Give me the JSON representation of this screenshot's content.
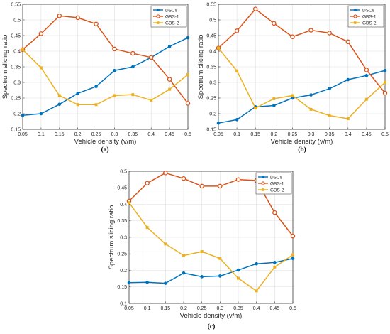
{
  "chart_data": [
    {
      "type": "line",
      "caption": "(a)",
      "xlabel": "Vehicle density (v/m)",
      "ylabel": "Spectrum slicing ratio",
      "x": [
        0.05,
        0.1,
        0.15,
        0.2,
        0.25,
        0.3,
        0.35,
        0.4,
        0.45,
        0.5
      ],
      "xticks": [
        "0.05",
        "0.1",
        "0.15",
        "0.2",
        "0.25",
        "0.3",
        "0.35",
        "0.4",
        "0.45",
        "0.5"
      ],
      "xlim": [
        0.05,
        0.5
      ],
      "ylim": [
        0.15,
        0.55
      ],
      "yticks": [
        "0.15",
        "0.2",
        "0.25",
        "0.3",
        "0.35",
        "0.4",
        "0.45",
        "0.5",
        "0.55"
      ],
      "grid": true,
      "legend_position": "top-right",
      "series": [
        {
          "name": "DSCs",
          "color": "#0072BD",
          "values": [
            0.195,
            0.2,
            0.23,
            0.265,
            0.287,
            0.338,
            0.35,
            0.38,
            0.415,
            0.443
          ]
        },
        {
          "name": "GBS-1",
          "color": "#D95319",
          "values": [
            0.405,
            0.456,
            0.513,
            0.507,
            0.487,
            0.407,
            0.393,
            0.38,
            0.31,
            0.233
          ]
        },
        {
          "name": "GBS-2",
          "color": "#EDB120",
          "values": [
            0.405,
            0.347,
            0.258,
            0.229,
            0.229,
            0.258,
            0.261,
            0.243,
            0.278,
            0.325
          ]
        }
      ]
    },
    {
      "type": "line",
      "caption": "(b)",
      "xlabel": "Vehicle density (v/m)",
      "ylabel": "Spectrum slicing ratio",
      "x": [
        0.05,
        0.1,
        0.15,
        0.2,
        0.25,
        0.3,
        0.35,
        0.4,
        0.45,
        0.5
      ],
      "xticks": [
        "0.05",
        "0.1",
        "0.15",
        "0.2",
        "0.25",
        "0.3",
        "0.35",
        "0.4",
        "0.45",
        "0.5"
      ],
      "xlim": [
        0.05,
        0.5
      ],
      "ylim": [
        0.15,
        0.55
      ],
      "yticks": [
        "0.15",
        "0.2",
        "0.25",
        "0.3",
        "0.35",
        "0.4",
        "0.45",
        "0.5",
        "0.55"
      ],
      "grid": true,
      "legend_position": "top-right",
      "series": [
        {
          "name": "DSCs",
          "color": "#0072BD",
          "values": [
            0.17,
            0.181,
            0.222,
            0.226,
            0.25,
            0.26,
            0.28,
            0.309,
            0.322,
            0.338
          ]
        },
        {
          "name": "GBS-1",
          "color": "#D95319",
          "values": [
            0.41,
            0.465,
            0.535,
            0.489,
            0.446,
            0.467,
            0.458,
            0.43,
            0.34,
            0.266
          ]
        },
        {
          "name": "GBS-2",
          "color": "#EDB120",
          "values": [
            0.41,
            0.337,
            0.218,
            0.248,
            0.258,
            0.214,
            0.194,
            0.184,
            0.246,
            0.3
          ]
        }
      ]
    },
    {
      "type": "line",
      "caption": "(c)",
      "xlabel": "Vehicle density (v/m)",
      "ylabel": "Spectrum slicing ratio",
      "x": [
        0.05,
        0.1,
        0.15,
        0.2,
        0.25,
        0.3,
        0.35,
        0.4,
        0.45,
        0.5
      ],
      "xticks": [
        "0.05",
        "0.1",
        "0.15",
        "0.2",
        "0.25",
        "0.3",
        "0.35",
        "0.4",
        "0.45",
        "0.5"
      ],
      "xlim": [
        0.05,
        0.5
      ],
      "ylim": [
        0.1,
        0.5
      ],
      "yticks": [
        "0.1",
        "0.15",
        "0.2",
        "0.25",
        "0.3",
        "0.35",
        "0.4",
        "0.45",
        "0.5"
      ],
      "grid": true,
      "legend_position": "top-right",
      "series": [
        {
          "name": "DSCs",
          "color": "#0072BD",
          "values": [
            0.163,
            0.164,
            0.161,
            0.192,
            0.181,
            0.183,
            0.201,
            0.22,
            0.224,
            0.236
          ]
        },
        {
          "name": "GBS-1",
          "color": "#D95319",
          "values": [
            0.41,
            0.464,
            0.495,
            0.478,
            0.455,
            0.455,
            0.475,
            0.472,
            0.375,
            0.304
          ]
        },
        {
          "name": "GBS-2",
          "color": "#EDB120",
          "values": [
            0.405,
            0.33,
            0.28,
            0.245,
            0.257,
            0.236,
            0.176,
            0.138,
            0.21,
            0.247
          ]
        }
      ]
    }
  ]
}
